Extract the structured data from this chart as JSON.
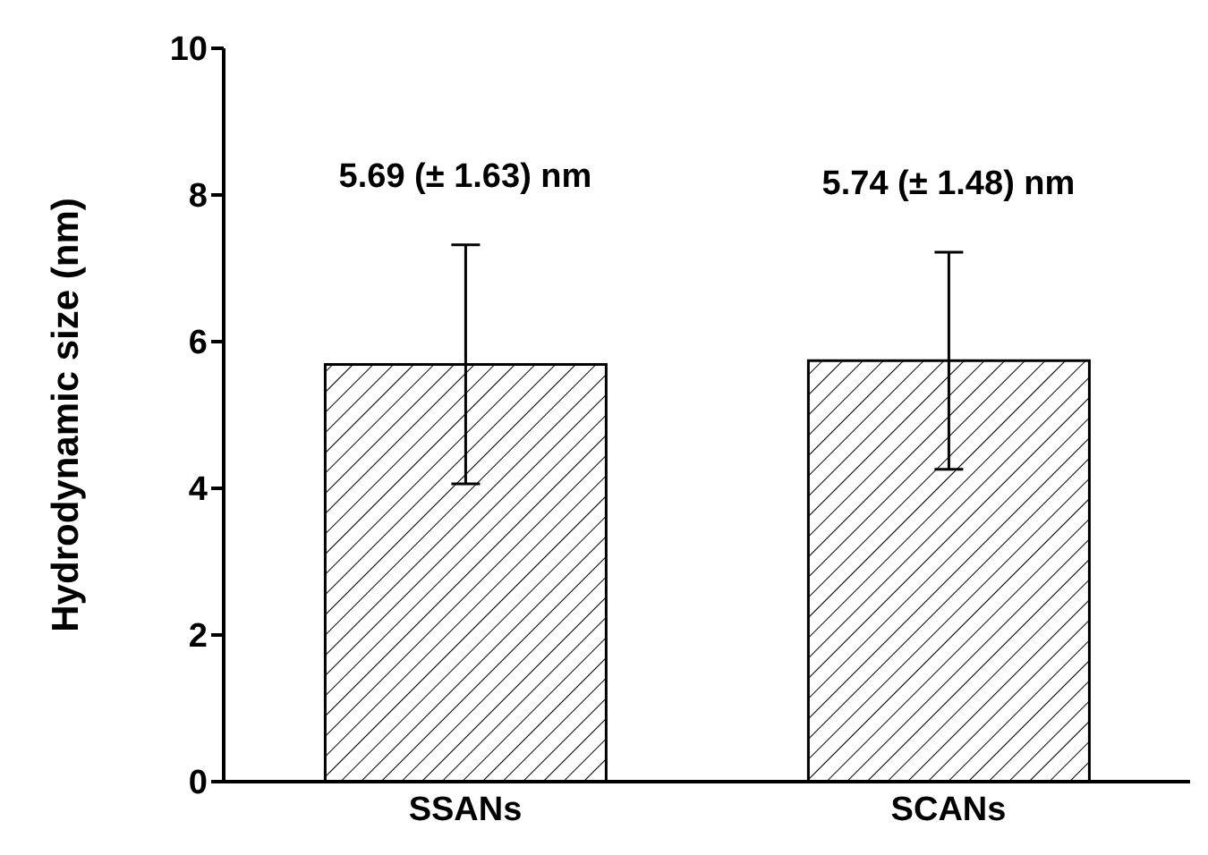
{
  "chart_data": {
    "type": "bar",
    "ylabel": "Hydrodynamic size (nm)",
    "categories": [
      "SSANs",
      "SCANs"
    ],
    "values": [
      5.69,
      5.74
    ],
    "errors": [
      1.63,
      1.48
    ],
    "annotations": [
      "5.69 (± 1.63) nm",
      "5.74 (± 1.48) nm"
    ],
    "color": "#000000",
    "ylim": [
      0,
      10
    ],
    "yticks": [
      0,
      2,
      4,
      6,
      8,
      10
    ],
    "grid": false,
    "legend": false
  }
}
